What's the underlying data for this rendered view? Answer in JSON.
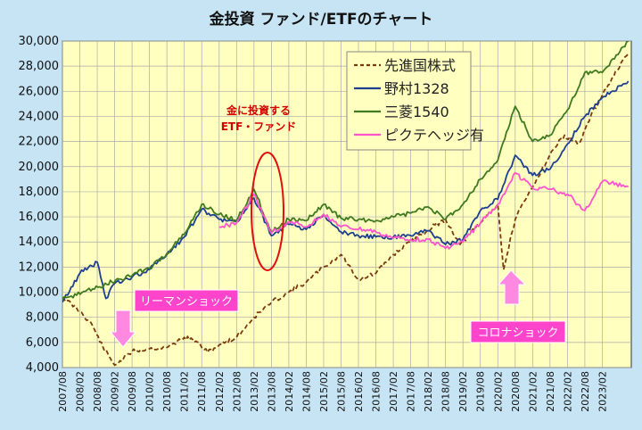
{
  "chart_data": {
    "type": "line",
    "title": "金投資 ファンド/ETFのチャート",
    "xlabel": "",
    "ylabel": "",
    "ylim": [
      4000,
      30000
    ],
    "yticks": [
      4000,
      6000,
      8000,
      10000,
      12000,
      14000,
      16000,
      18000,
      20000,
      22000,
      24000,
      26000,
      28000,
      30000
    ],
    "ytick_labels": [
      "4,000",
      "6,000",
      "8,000",
      "10,000",
      "12,000",
      "14,000",
      "16,000",
      "18,000",
      "20,000",
      "22,000",
      "24,000",
      "26,000",
      "28,000",
      "30,000"
    ],
    "xlim": [
      "2007-08",
      "2023-12"
    ],
    "xtick_labels": [
      "2007/08",
      "2008/02",
      "2008/08",
      "2009/02",
      "2009/08",
      "2010/02",
      "2010/08",
      "2011/02",
      "2011/08",
      "2012/02",
      "2012/08",
      "2013/02",
      "2013/08",
      "2014/02",
      "2014/08",
      "2015/02",
      "2015/08",
      "2016/02",
      "2016/08",
      "2017/02",
      "2017/08",
      "2018/02",
      "2018/08",
      "2019/02",
      "2019/08",
      "2020/02",
      "2020/08",
      "2021/02",
      "2021/08",
      "2022/02",
      "2022/08",
      "2023/02"
    ],
    "grid": true,
    "legend": "top-right",
    "series": [
      {
        "name": "先進国株式",
        "color": "#7a3a0a",
        "style": "dashed",
        "points": [
          [
            "2007-08",
            9600
          ],
          [
            "2008-02",
            8500
          ],
          [
            "2008-06",
            7500
          ],
          [
            "2008-10",
            5600
          ],
          [
            "2009-02",
            4200
          ],
          [
            "2009-05",
            4700
          ],
          [
            "2009-08",
            5300
          ],
          [
            "2010-02",
            5500
          ],
          [
            "2010-08",
            5600
          ],
          [
            "2011-02",
            6400
          ],
          [
            "2011-06",
            6100
          ],
          [
            "2011-10",
            5200
          ],
          [
            "2012-02",
            5800
          ],
          [
            "2012-08",
            6400
          ],
          [
            "2013-02",
            8000
          ],
          [
            "2013-08",
            9200
          ],
          [
            "2014-02",
            10000
          ],
          [
            "2014-08",
            10800
          ],
          [
            "2015-02",
            12000
          ],
          [
            "2015-08",
            13000
          ],
          [
            "2016-02",
            11000
          ],
          [
            "2016-08",
            11500
          ],
          [
            "2017-02",
            13000
          ],
          [
            "2017-08",
            14000
          ],
          [
            "2018-02",
            15000
          ],
          [
            "2018-08",
            15800
          ],
          [
            "2019-01",
            13800
          ],
          [
            "2019-08",
            15500
          ],
          [
            "2020-02",
            17000
          ],
          [
            "2020-04",
            11800
          ],
          [
            "2020-08",
            15800
          ],
          [
            "2021-02",
            18400
          ],
          [
            "2021-08",
            21000
          ],
          [
            "2022-01",
            22500
          ],
          [
            "2022-06",
            21800
          ],
          [
            "2022-10",
            24000
          ],
          [
            "2023-04",
            26500
          ],
          [
            "2023-11",
            29000
          ]
        ]
      },
      {
        "name": "野村1328",
        "color": "#1f3f8f",
        "style": "solid",
        "points": [
          [
            "2007-08",
            9200
          ],
          [
            "2008-02",
            11500
          ],
          [
            "2008-08",
            12400
          ],
          [
            "2008-11",
            9500
          ],
          [
            "2009-02",
            10700
          ],
          [
            "2009-08",
            11200
          ],
          [
            "2010-02",
            11800
          ],
          [
            "2010-08",
            13000
          ],
          [
            "2011-02",
            14400
          ],
          [
            "2011-08",
            16600
          ],
          [
            "2012-02",
            15800
          ],
          [
            "2012-08",
            15600
          ],
          [
            "2013-02",
            17500
          ],
          [
            "2013-08",
            14500
          ],
          [
            "2014-02",
            15400
          ],
          [
            "2014-08",
            15000
          ],
          [
            "2015-02",
            16200
          ],
          [
            "2015-08",
            14800
          ],
          [
            "2016-02",
            14500
          ],
          [
            "2016-08",
            14400
          ],
          [
            "2017-02",
            14400
          ],
          [
            "2017-08",
            14500
          ],
          [
            "2018-02",
            14900
          ],
          [
            "2018-08",
            13800
          ],
          [
            "2019-02",
            14200
          ],
          [
            "2019-08",
            16500
          ],
          [
            "2020-02",
            17400
          ],
          [
            "2020-08",
            20900
          ],
          [
            "2021-02",
            19300
          ],
          [
            "2021-08",
            19800
          ],
          [
            "2022-02",
            21800
          ],
          [
            "2022-08",
            24000
          ],
          [
            "2023-02",
            25500
          ],
          [
            "2023-11",
            26800
          ]
        ]
      },
      {
        "name": "三菱1540",
        "color": "#3f7a1f",
        "style": "solid",
        "points": [
          [
            "2007-08",
            9400
          ],
          [
            "2010-02",
            11900
          ],
          [
            "2010-08",
            13100
          ],
          [
            "2011-02",
            14600
          ],
          [
            "2011-08",
            17000
          ],
          [
            "2012-02",
            16200
          ],
          [
            "2012-08",
            15700
          ],
          [
            "2013-02",
            18200
          ],
          [
            "2013-08",
            14800
          ],
          [
            "2014-02",
            15800
          ],
          [
            "2014-08",
            15700
          ],
          [
            "2015-02",
            17000
          ],
          [
            "2015-08",
            15900
          ],
          [
            "2016-02",
            15800
          ],
          [
            "2016-08",
            15700
          ],
          [
            "2017-02",
            16000
          ],
          [
            "2017-08",
            16300
          ],
          [
            "2018-02",
            16800
          ],
          [
            "2018-08",
            15800
          ],
          [
            "2019-02",
            17000
          ],
          [
            "2019-08",
            19000
          ],
          [
            "2020-02",
            20500
          ],
          [
            "2020-08",
            24800
          ],
          [
            "2021-02",
            22000
          ],
          [
            "2021-08",
            22500
          ],
          [
            "2022-02",
            24500
          ],
          [
            "2022-08",
            27500
          ],
          [
            "2023-02",
            27500
          ],
          [
            "2023-11",
            30000
          ]
        ]
      },
      {
        "name": "ピクテヘッジ有",
        "color": "#ff55cc",
        "style": "solid",
        "points": [
          [
            "2012-02",
            15200
          ],
          [
            "2012-08",
            15500
          ],
          [
            "2013-02",
            17800
          ],
          [
            "2013-08",
            14700
          ],
          [
            "2014-02",
            15600
          ],
          [
            "2014-08",
            15200
          ],
          [
            "2015-02",
            16200
          ],
          [
            "2015-08",
            15200
          ],
          [
            "2016-02",
            15000
          ],
          [
            "2016-08",
            14800
          ],
          [
            "2017-02",
            14300
          ],
          [
            "2017-08",
            14200
          ],
          [
            "2018-02",
            14200
          ],
          [
            "2018-08",
            13500
          ],
          [
            "2019-02",
            14000
          ],
          [
            "2019-08",
            15500
          ],
          [
            "2020-02",
            17000
          ],
          [
            "2020-08",
            19500
          ],
          [
            "2021-02",
            18300
          ],
          [
            "2021-08",
            18200
          ],
          [
            "2022-02",
            17800
          ],
          [
            "2022-08",
            16500
          ],
          [
            "2023-02",
            18800
          ],
          [
            "2023-11",
            18400
          ]
        ]
      }
    ],
    "annotations": [
      {
        "text_lines": [
          "金に投資する",
          "ETF・ファンド"
        ],
        "color": "#d40000",
        "at": [
          "2013-01",
          17500
        ]
      },
      {
        "text": "リーマンショック",
        "at": [
          "2009-03",
          5000
        ]
      },
      {
        "text": "コロナショック",
        "at": [
          "2020-03",
          11500
        ]
      }
    ]
  }
}
